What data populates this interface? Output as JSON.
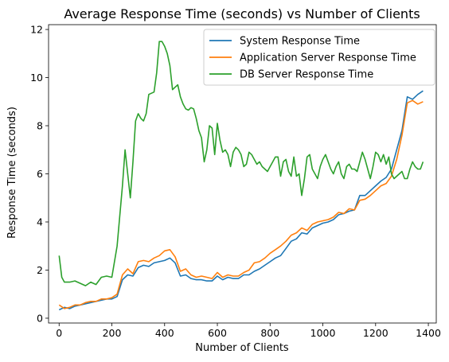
{
  "chart_data": {
    "type": "line",
    "title": "Average Response Time (seconds) vs Number of Clients",
    "xlabel": "Number of Clients",
    "ylabel": "Response Time (seconds)",
    "xlim": [
      -40,
      1430
    ],
    "ylim": [
      -0.2,
      12.2
    ],
    "xticks": [
      0,
      200,
      400,
      600,
      800,
      1000,
      1200,
      1400
    ],
    "yticks": [
      0,
      2,
      4,
      6,
      8,
      10,
      12
    ],
    "grid": false,
    "legend_position": "top-right",
    "series": [
      {
        "name": "System Response Time",
        "color": "#1f77b4",
        "x": [
          0,
          20,
          40,
          60,
          80,
          100,
          120,
          140,
          160,
          180,
          200,
          220,
          240,
          260,
          280,
          300,
          320,
          340,
          360,
          380,
          400,
          420,
          440,
          460,
          480,
          500,
          520,
          540,
          560,
          580,
          600,
          620,
          640,
          660,
          680,
          700,
          720,
          740,
          760,
          780,
          800,
          820,
          840,
          860,
          880,
          900,
          920,
          940,
          960,
          980,
          1000,
          1020,
          1040,
          1060,
          1080,
          1100,
          1120,
          1140,
          1160,
          1180,
          1200,
          1220,
          1240,
          1260,
          1280,
          1300,
          1320,
          1340,
          1360,
          1380
        ],
        "y": [
          0.35,
          0.45,
          0.4,
          0.5,
          0.55,
          0.6,
          0.65,
          0.7,
          0.75,
          0.8,
          0.8,
          0.9,
          1.6,
          1.8,
          1.75,
          2.1,
          2.2,
          2.15,
          2.3,
          2.35,
          2.4,
          2.5,
          2.3,
          1.75,
          1.8,
          1.65,
          1.6,
          1.6,
          1.55,
          1.55,
          1.75,
          1.6,
          1.7,
          1.65,
          1.65,
          1.8,
          1.8,
          1.95,
          2.05,
          2.2,
          2.35,
          2.5,
          2.6,
          2.9,
          3.2,
          3.3,
          3.55,
          3.5,
          3.75,
          3.85,
          3.95,
          4.0,
          4.1,
          4.3,
          4.35,
          4.45,
          4.5,
          5.1,
          5.1,
          5.3,
          5.5,
          5.7,
          5.85,
          6.2,
          7.0,
          7.8,
          9.2,
          9.1,
          9.3,
          9.45
        ]
      },
      {
        "name": "Application Server Response Time",
        "color": "#ff7f0e",
        "x": [
          0,
          20,
          40,
          60,
          80,
          100,
          120,
          140,
          160,
          180,
          200,
          220,
          240,
          260,
          280,
          300,
          320,
          340,
          360,
          380,
          400,
          420,
          440,
          460,
          480,
          500,
          520,
          540,
          560,
          580,
          600,
          620,
          640,
          660,
          680,
          700,
          720,
          740,
          760,
          780,
          800,
          820,
          840,
          860,
          880,
          900,
          920,
          940,
          960,
          980,
          1000,
          1020,
          1040,
          1060,
          1080,
          1100,
          1120,
          1140,
          1160,
          1180,
          1200,
          1220,
          1240,
          1260,
          1280,
          1300,
          1320,
          1340,
          1360,
          1380
        ],
        "y": [
          0.55,
          0.4,
          0.45,
          0.55,
          0.55,
          0.65,
          0.7,
          0.7,
          0.8,
          0.8,
          0.85,
          1.0,
          1.8,
          2.05,
          1.85,
          2.35,
          2.4,
          2.35,
          2.5,
          2.6,
          2.8,
          2.85,
          2.55,
          1.95,
          2.05,
          1.8,
          1.7,
          1.75,
          1.7,
          1.65,
          1.9,
          1.7,
          1.8,
          1.75,
          1.75,
          1.9,
          2.0,
          2.3,
          2.35,
          2.5,
          2.7,
          2.85,
          3.0,
          3.2,
          3.45,
          3.55,
          3.75,
          3.65,
          3.9,
          4.0,
          4.05,
          4.1,
          4.2,
          4.4,
          4.35,
          4.55,
          4.5,
          4.9,
          4.95,
          5.1,
          5.3,
          5.5,
          5.6,
          5.9,
          6.6,
          7.6,
          8.95,
          9.05,
          8.9,
          9.0
        ]
      },
      {
        "name": "DB Server Response Time",
        "color": "#2ca02c",
        "x": [
          0,
          10,
          20,
          40,
          60,
          80,
          100,
          120,
          140,
          160,
          180,
          200,
          220,
          240,
          250,
          260,
          270,
          280,
          290,
          300,
          310,
          320,
          330,
          340,
          350,
          360,
          370,
          380,
          390,
          400,
          410,
          420,
          430,
          440,
          450,
          460,
          470,
          480,
          490,
          500,
          510,
          520,
          530,
          540,
          550,
          560,
          570,
          580,
          590,
          600,
          610,
          620,
          630,
          640,
          650,
          660,
          670,
          680,
          690,
          700,
          710,
          720,
          730,
          740,
          750,
          760,
          770,
          780,
          790,
          800,
          810,
          820,
          830,
          840,
          850,
          860,
          870,
          880,
          890,
          900,
          910,
          920,
          930,
          940,
          950,
          960,
          970,
          980,
          990,
          1000,
          1010,
          1020,
          1030,
          1040,
          1050,
          1060,
          1070,
          1080,
          1090,
          1100,
          1110,
          1120,
          1130,
          1140,
          1150,
          1160,
          1170,
          1180,
          1190,
          1200,
          1210,
          1220,
          1230,
          1240,
          1250,
          1260,
          1270,
          1280,
          1290,
          1300,
          1310,
          1320,
          1330,
          1340,
          1350,
          1360,
          1370,
          1380
        ],
        "y": [
          2.6,
          1.7,
          1.5,
          1.5,
          1.55,
          1.45,
          1.35,
          1.5,
          1.4,
          1.7,
          1.75,
          1.7,
          3.0,
          5.5,
          7.0,
          6.0,
          5.0,
          6.5,
          8.2,
          8.5,
          8.3,
          8.2,
          8.5,
          9.3,
          9.35,
          9.4,
          10.2,
          11.5,
          11.5,
          11.3,
          11.0,
          10.5,
          9.5,
          9.6,
          9.7,
          9.2,
          8.9,
          8.7,
          8.65,
          8.75,
          8.7,
          8.3,
          7.8,
          7.5,
          6.5,
          7.0,
          8.0,
          7.9,
          6.8,
          8.1,
          7.4,
          6.9,
          7.0,
          6.8,
          6.3,
          6.9,
          7.1,
          7.0,
          6.8,
          6.3,
          6.4,
          6.9,
          6.8,
          6.6,
          6.4,
          6.5,
          6.3,
          6.2,
          6.1,
          6.3,
          6.5,
          6.7,
          6.7,
          5.9,
          6.5,
          6.6,
          6.1,
          5.9,
          6.7,
          5.9,
          6.0,
          5.1,
          5.8,
          6.7,
          6.8,
          6.2,
          6.0,
          5.8,
          6.3,
          6.6,
          6.8,
          6.5,
          6.2,
          6.0,
          6.3,
          6.5,
          6.0,
          5.8,
          6.3,
          6.4,
          6.2,
          6.2,
          6.1,
          6.5,
          6.9,
          6.6,
          6.2,
          5.8,
          6.3,
          6.9,
          6.8,
          6.5,
          6.8,
          6.4,
          6.7,
          6.0,
          5.8,
          5.9,
          6.0,
          6.1,
          5.8,
          5.8,
          6.2,
          6.5,
          6.3,
          6.2,
          6.2,
          6.5
        ]
      }
    ]
  }
}
